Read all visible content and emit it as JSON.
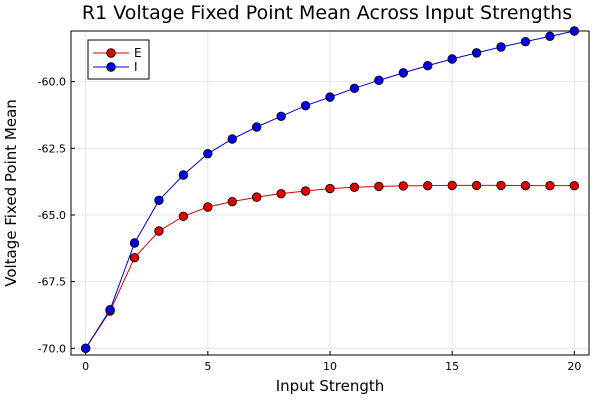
{
  "chart_data": {
    "type": "line",
    "title": "R1 Voltage Fixed Point Mean Across Input Strengths",
    "xlabel": "Input Strength",
    "ylabel": "Voltage Fixed Point Mean",
    "xlim": [
      -0.6,
      20.6
    ],
    "ylim": [
      -70.25,
      -58.1
    ],
    "xticks": [
      0,
      5,
      10,
      15,
      20
    ],
    "xtick_labels": [
      "0",
      "5",
      "10",
      "15",
      "20"
    ],
    "yticks": [
      -70.0,
      -67.5,
      -65.0,
      -62.5,
      -60.0
    ],
    "ytick_labels": [
      "-70.0",
      "-67.5",
      "-65.0",
      "-62.5",
      "-60.0"
    ],
    "grid": true,
    "legend_position": "top-left",
    "x": [
      0,
      1,
      2,
      3,
      4,
      5,
      6,
      7,
      8,
      9,
      10,
      11,
      12,
      13,
      14,
      15,
      16,
      17,
      18,
      19,
      20
    ],
    "series": [
      {
        "name": "E",
        "color": "#e00000",
        "values": [
          -70.0,
          -68.6,
          -66.6,
          -65.6,
          -65.05,
          -64.7,
          -64.5,
          -64.33,
          -64.2,
          -64.1,
          -64.01,
          -63.96,
          -63.93,
          -63.91,
          -63.9,
          -63.89,
          -63.89,
          -63.89,
          -63.9,
          -63.9,
          -63.9
        ]
      },
      {
        "name": "I",
        "color": "#0000e0",
        "values": [
          -70.0,
          -68.55,
          -66.05,
          -64.45,
          -63.5,
          -62.7,
          -62.15,
          -61.7,
          -61.3,
          -60.9,
          -60.58,
          -60.25,
          -59.95,
          -59.67,
          -59.4,
          -59.15,
          -58.92,
          -58.7,
          -58.5,
          -58.3,
          -58.1
        ]
      }
    ]
  }
}
